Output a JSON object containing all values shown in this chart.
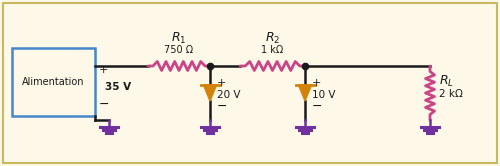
{
  "bg_color": "#fdf8e8",
  "border_color": "#c8b860",
  "wire_color": "#1a1a1a",
  "resistor_color": "#cc4488",
  "zener_color": "#d4820a",
  "ground_color": "#7030a0",
  "supply_box_color": "#4488cc",
  "r1_label": "$R_1$",
  "r1_val": "750 Ω",
  "r2_label": "$R_2$",
  "r2_val": "1 kΩ",
  "rl_label": "$R_L$",
  "rl_val": "2 kΩ",
  "supply_label": "Alimentation",
  "supply_val": "35 V",
  "z1_val": "20 V",
  "z2_val": "10 V",
  "figsize": [
    5.0,
    1.66
  ],
  "dpi": 100
}
